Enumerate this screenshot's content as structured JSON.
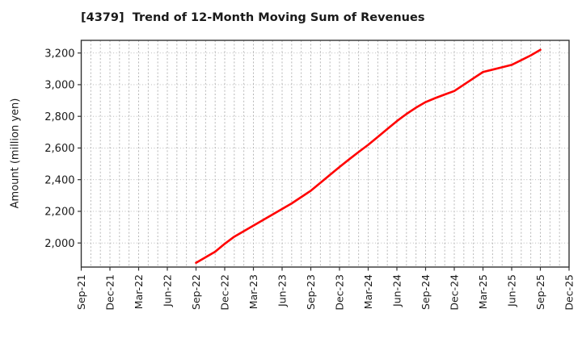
{
  "colors": {
    "line": "#ff0000",
    "grid": "#b0b0b0",
    "axis": "#333333",
    "text": "#1a1a1a",
    "background": "#ffffff"
  },
  "chart_data": {
    "type": "line",
    "title": "[4379]  Trend of 12-Month Moving Sum of Revenues",
    "ylabel": "Amount (million yen)",
    "xlabel": "",
    "grid": "dotted, monthly vertical + 200-step horizontal",
    "legend": "none",
    "ylim": [
      1848,
      3280
    ],
    "x_axis": {
      "start_label": "Sep-21",
      "end_label": "Dec-25",
      "months_total": 51,
      "tick_every_months": 3,
      "tick_labels": [
        "Sep-21",
        "Dec-21",
        "Mar-22",
        "Jun-22",
        "Sep-22",
        "Dec-22",
        "Mar-23",
        "Jun-23",
        "Sep-23",
        "Dec-23",
        "Mar-24",
        "Jun-24",
        "Sep-24",
        "Dec-24",
        "Mar-25",
        "Jun-25",
        "Sep-25",
        "Dec-25"
      ]
    },
    "y_ticks": {
      "values": [
        2000,
        2200,
        2400,
        2600,
        2800,
        3000,
        3200
      ],
      "labels": [
        "2,000",
        "2,200",
        "2,400",
        "2,600",
        "2,800",
        "3,000",
        "3,200"
      ]
    },
    "series": [
      {
        "name": "12-Month Moving Sum of Revenues",
        "color": "#ff0000",
        "start_month_index": 12,
        "x": [
          "Sep-22",
          "Oct-22",
          "Nov-22",
          "Dec-22",
          "Jan-23",
          "Feb-23",
          "Mar-23",
          "Apr-23",
          "May-23",
          "Jun-23",
          "Jul-23",
          "Aug-23",
          "Sep-23",
          "Oct-23",
          "Nov-23",
          "Dec-23",
          "Jan-24",
          "Feb-24",
          "Mar-24",
          "Apr-24",
          "May-24",
          "Jun-24",
          "Jul-24",
          "Aug-24",
          "Sep-24",
          "Oct-24",
          "Nov-24",
          "Dec-24",
          "Jan-25",
          "Feb-25",
          "Mar-25",
          "Apr-25",
          "May-25",
          "Jun-25",
          "Jul-25",
          "Aug-25",
          "Sep-25"
        ],
        "values": [
          1875,
          1910,
          1945,
          1995,
          2040,
          2075,
          2110,
          2145,
          2180,
          2215,
          2250,
          2290,
          2330,
          2380,
          2430,
          2480,
          2528,
          2575,
          2620,
          2670,
          2720,
          2770,
          2815,
          2855,
          2890,
          2915,
          2938,
          2960,
          3000,
          3040,
          3080,
          3095,
          3110,
          3125,
          3155,
          3185,
          3220
        ]
      }
    ]
  }
}
